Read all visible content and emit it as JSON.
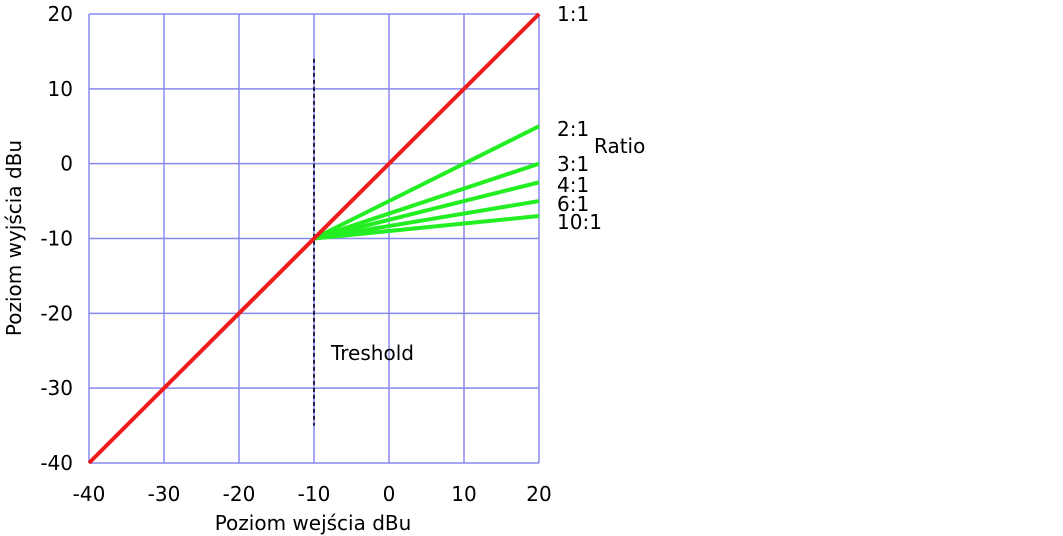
{
  "chart_data": {
    "type": "line",
    "xlabel": "Poziom wejścia dBu",
    "ylabel": "Poziom wyjścia dBu",
    "xlim": [
      -40,
      20
    ],
    "ylim": [
      -40,
      20
    ],
    "xticks": [
      -40,
      -30,
      -20,
      -10,
      0,
      10,
      20
    ],
    "yticks": [
      -40,
      -30,
      -20,
      -10,
      0,
      10,
      20
    ],
    "xtick_labels": [
      "-40",
      "-30",
      "-20",
      "-10",
      "0",
      "10",
      "20"
    ],
    "ytick_labels": [
      "-40",
      "-30",
      "-20",
      "-10",
      "0",
      "10",
      "20"
    ],
    "grid": true,
    "threshold": -10,
    "threshold_label": "Treshold",
    "threshold_line_y_range": [
      -35,
      14
    ],
    "ratio_group_label": "Ratio",
    "series": [
      {
        "name": "1:1",
        "color": "#ee1c1c",
        "points": [
          [
            -40,
            -40
          ],
          [
            20,
            20
          ]
        ]
      },
      {
        "name": "2:1",
        "color": "#22ee22",
        "points": [
          [
            -10,
            -10
          ],
          [
            20,
            5
          ]
        ]
      },
      {
        "name": "3:1",
        "color": "#22ee22",
        "points": [
          [
            -10,
            -10
          ],
          [
            20,
            0
          ]
        ]
      },
      {
        "name": "4:1",
        "color": "#22ee22",
        "points": [
          [
            -10,
            -10
          ],
          [
            20,
            -2.5
          ]
        ]
      },
      {
        "name": "6:1",
        "color": "#22ee22",
        "points": [
          [
            -10,
            -10
          ],
          [
            20,
            -5
          ]
        ]
      },
      {
        "name": "10:1",
        "color": "#22ee22",
        "points": [
          [
            -10,
            -10
          ],
          [
            20,
            -7
          ]
        ]
      }
    ],
    "colors": {
      "grid": "#8888ee",
      "threshold_line": "#222244",
      "ratio_1_1": "#ee1c1c",
      "compression": "#22ee22"
    }
  }
}
